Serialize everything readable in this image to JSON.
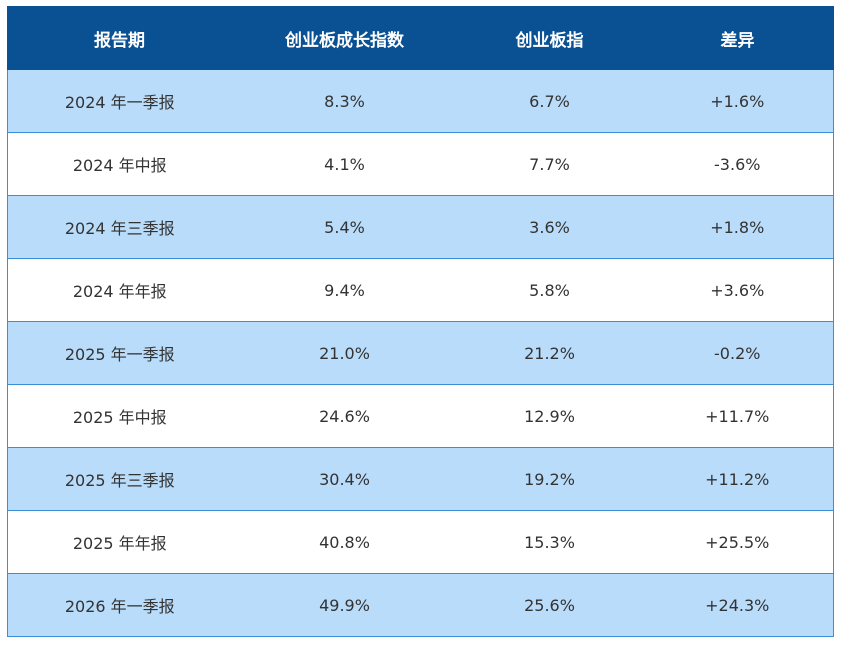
{
  "table": {
    "headers": [
      "报告期",
      "创业板成长指数",
      "创业板指",
      "差异"
    ],
    "rows": [
      [
        "2024 年一季报",
        "8.3%",
        "6.7%",
        "+1.6%"
      ],
      [
        "2024 年中报",
        "4.1%",
        "7.7%",
        "-3.6%"
      ],
      [
        "2024 年三季报",
        "5.4%",
        "3.6%",
        "+1.8%"
      ],
      [
        "2024 年年报",
        "9.4%",
        "5.8%",
        "+3.6%"
      ],
      [
        "2025 年一季报",
        "21.0%",
        "21.2%",
        "-0.2%"
      ],
      [
        "2025 年中报",
        "24.6%",
        "12.9%",
        "+11.7%"
      ],
      [
        "2025 年三季报",
        "30.4%",
        "19.2%",
        "+11.2%"
      ],
      [
        "2025 年年报",
        "40.8%",
        "15.3%",
        "+25.5%"
      ],
      [
        "2026 年一季报",
        "49.9%",
        "25.6%",
        "+24.3%"
      ]
    ]
  },
  "colors": {
    "header_bg": "#0a5194",
    "header_text": "#ffffff",
    "row_shaded": "#b9dcfa",
    "row_plain": "#ffffff",
    "border": "#3a8fd6",
    "cell_text": "#333333"
  }
}
